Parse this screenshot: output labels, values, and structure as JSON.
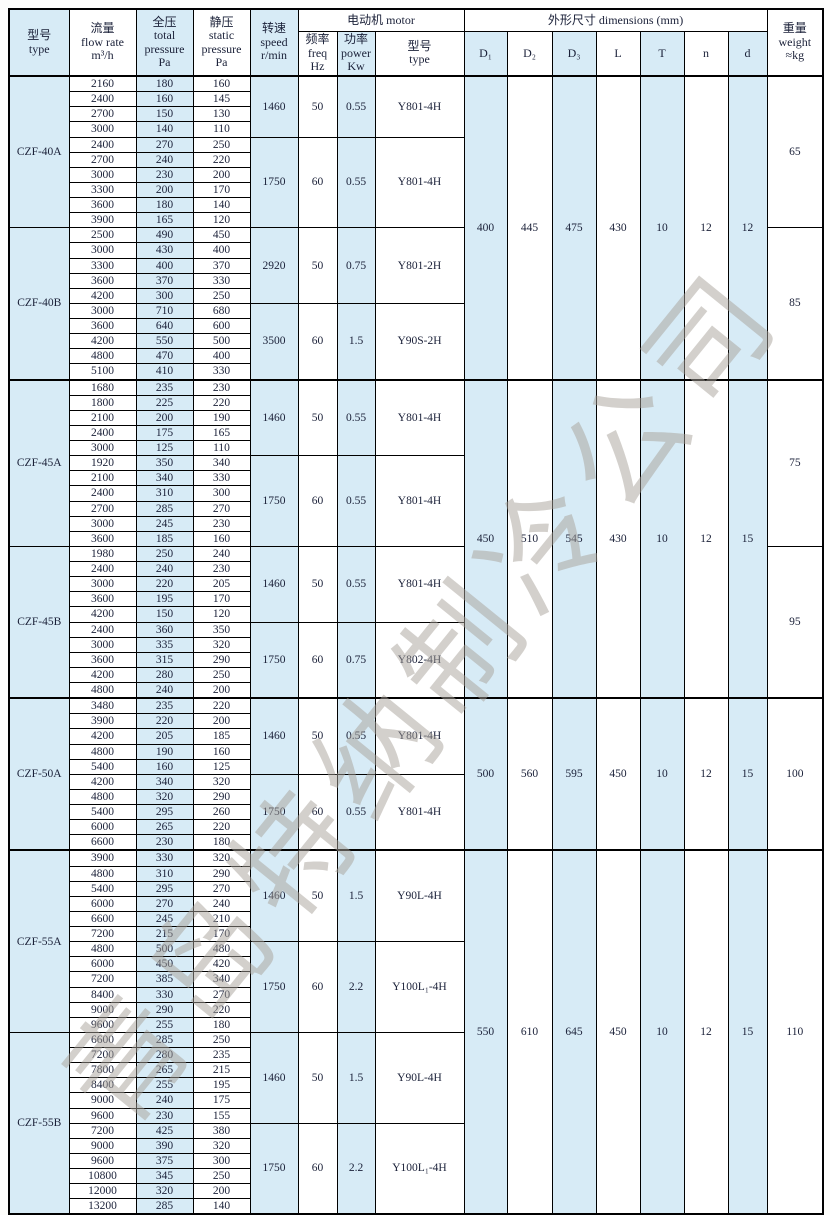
{
  "colors": {
    "stripe": "#d7ebf6",
    "border": "#000000",
    "text": "#1a2038",
    "watermark": "#a8a29a"
  },
  "watermark_text": "青岛特纳制冷公司",
  "header": {
    "type": [
      "型号",
      "type"
    ],
    "flow": [
      "流量",
      "flow rate",
      "m³/h"
    ],
    "total": [
      "全压",
      "total",
      "pressure",
      "Pa"
    ],
    "static": [
      "静压",
      "static",
      "pressure",
      "Pa"
    ],
    "speed": [
      "转速",
      "speed",
      "r/min"
    ],
    "motor_group": "电动机  motor",
    "freq": [
      "频率",
      "freq",
      "Hz"
    ],
    "power": [
      "功率",
      "power",
      "Kw"
    ],
    "motor_type": [
      "型号",
      "type"
    ],
    "dims_group": "外形尺寸   dimensions (mm)",
    "d1": "D₁",
    "d2": "D₂",
    "d3": "D₃",
    "L": "L",
    "T": "T",
    "n": "n",
    "d": "d",
    "weight": [
      "重量",
      "weight",
      "≈kg"
    ]
  },
  "models": [
    {
      "name": "CZF-40A",
      "blocks": [
        {
          "speed": "1460",
          "freq": "50",
          "power": "0.55",
          "motor": "Y801-4H",
          "rows": [
            [
              2160,
              180,
              160
            ],
            [
              2400,
              160,
              145
            ],
            [
              2700,
              150,
              130
            ],
            [
              3000,
              140,
              110
            ]
          ]
        },
        {
          "speed": "1750",
          "freq": "60",
          "power": "0.55",
          "motor": "Y801-4H",
          "rows": [
            [
              2400,
              270,
              250
            ],
            [
              2700,
              240,
              220
            ],
            [
              3000,
              230,
              200
            ],
            [
              3300,
              200,
              170
            ],
            [
              3600,
              180,
              140
            ],
            [
              3900,
              165,
              120
            ]
          ]
        }
      ]
    },
    {
      "name": "CZF-40B",
      "blocks": [
        {
          "speed": "2920",
          "freq": "50",
          "power": "0.75",
          "motor": "Y801-2H",
          "rows": [
            [
              2500,
              490,
              450
            ],
            [
              3000,
              430,
              400
            ],
            [
              3300,
              400,
              370
            ],
            [
              3600,
              370,
              330
            ],
            [
              4200,
              300,
              250
            ]
          ]
        },
        {
          "speed": "3500",
          "freq": "60",
          "power": "1.5",
          "motor": "Y90S-2H",
          "rows": [
            [
              3000,
              710,
              680
            ],
            [
              3600,
              640,
              600
            ],
            [
              4200,
              550,
              500
            ],
            [
              4800,
              470,
              400
            ],
            [
              5100,
              410,
              330
            ]
          ]
        }
      ]
    },
    {
      "name": "CZF-45A",
      "blocks": [
        {
          "speed": "1460",
          "freq": "50",
          "power": "0.55",
          "motor": "Y801-4H",
          "rows": [
            [
              1680,
              235,
              230
            ],
            [
              1800,
              225,
              220
            ],
            [
              2100,
              200,
              190
            ],
            [
              2400,
              175,
              165
            ],
            [
              3000,
              125,
              110
            ]
          ]
        },
        {
          "speed": "1750",
          "freq": "60",
          "power": "0.55",
          "motor": "Y801-4H",
          "rows": [
            [
              1920,
              350,
              340
            ],
            [
              2100,
              340,
              330
            ],
            [
              2400,
              310,
              300
            ],
            [
              2700,
              285,
              270
            ],
            [
              3000,
              245,
              230
            ],
            [
              3600,
              185,
              160
            ]
          ]
        }
      ]
    },
    {
      "name": "CZF-45B",
      "blocks": [
        {
          "speed": "1460",
          "freq": "50",
          "power": "0.55",
          "motor": "Y801-4H",
          "rows": [
            [
              1980,
              250,
              240
            ],
            [
              2400,
              240,
              230
            ],
            [
              3000,
              220,
              205
            ],
            [
              3600,
              195,
              170
            ],
            [
              4200,
              150,
              120
            ]
          ]
        },
        {
          "speed": "1750",
          "freq": "60",
          "power": "0.75",
          "motor": "Y802-4H",
          "rows": [
            [
              2400,
              360,
              350
            ],
            [
              3000,
              335,
              320
            ],
            [
              3600,
              315,
              290
            ],
            [
              4200,
              280,
              250
            ],
            [
              4800,
              240,
              200
            ]
          ]
        }
      ]
    },
    {
      "name": "CZF-50A",
      "blocks": [
        {
          "speed": "1460",
          "freq": "50",
          "power": "0.55",
          "motor": "Y801-4H",
          "rows": [
            [
              3480,
              235,
              220
            ],
            [
              3900,
              220,
              200
            ],
            [
              4200,
              205,
              185
            ],
            [
              4800,
              190,
              160
            ],
            [
              5400,
              160,
              125
            ]
          ]
        },
        {
          "speed": "1750",
          "freq": "60",
          "power": "0.55",
          "motor": "Y801-4H",
          "rows": [
            [
              4200,
              340,
              320
            ],
            [
              4800,
              320,
              290
            ],
            [
              5400,
              295,
              260
            ],
            [
              6000,
              265,
              220
            ],
            [
              6600,
              230,
              180
            ]
          ]
        }
      ]
    },
    {
      "name": "CZF-55A",
      "blocks": [
        {
          "speed": "1460",
          "freq": "50",
          "power": "1.5",
          "motor": "Y90L-4H",
          "rows": [
            [
              3900,
              330,
              320
            ],
            [
              4800,
              310,
              290
            ],
            [
              5400,
              295,
              270
            ],
            [
              6000,
              270,
              240
            ],
            [
              6600,
              245,
              210
            ],
            [
              7200,
              215,
              170
            ]
          ]
        },
        {
          "speed": "1750",
          "freq": "60",
          "power": "2.2",
          "motor": "Y100L₁-4H",
          "rows": [
            [
              4800,
              500,
              480
            ],
            [
              6000,
              450,
              420
            ],
            [
              7200,
              385,
              340
            ],
            [
              8400,
              330,
              270
            ],
            [
              9000,
              290,
              220
            ],
            [
              9600,
              255,
              180
            ]
          ]
        }
      ]
    },
    {
      "name": "CZF-55B",
      "blocks": [
        {
          "speed": "1460",
          "freq": "50",
          "power": "1.5",
          "motor": "Y90L-4H",
          "rows": [
            [
              6600,
              285,
              250
            ],
            [
              7200,
              280,
              235
            ],
            [
              7800,
              265,
              215
            ],
            [
              8400,
              255,
              195
            ],
            [
              9000,
              240,
              175
            ],
            [
              9600,
              230,
              155
            ]
          ]
        },
        {
          "speed": "1750",
          "freq": "60",
          "power": "2.2",
          "motor": "Y100L₁-4H",
          "rows": [
            [
              7200,
              425,
              380
            ],
            [
              9000,
              390,
              320
            ],
            [
              9600,
              375,
              300
            ],
            [
              10800,
              345,
              250
            ],
            [
              12000,
              320,
              200
            ],
            [
              13200,
              285,
              140
            ]
          ]
        }
      ]
    }
  ],
  "dim_groups": [
    {
      "model_indexes": [
        0,
        1
      ],
      "values": [
        "400",
        "445",
        "475",
        "430",
        "10",
        "12",
        "12"
      ]
    },
    {
      "model_indexes": [
        2,
        3
      ],
      "values": [
        "450",
        "510",
        "545",
        "430",
        "10",
        "12",
        "15"
      ]
    },
    {
      "model_indexes": [
        4
      ],
      "values": [
        "500",
        "560",
        "595",
        "450",
        "10",
        "12",
        "15"
      ]
    },
    {
      "model_indexes": [
        5,
        6
      ],
      "values": [
        "550",
        "610",
        "645",
        "450",
        "10",
        "12",
        "15"
      ]
    }
  ],
  "weight_groups": [
    {
      "model_indexes": [
        0
      ],
      "value": "65"
    },
    {
      "model_indexes": [
        1
      ],
      "value": "85"
    },
    {
      "model_indexes": [
        2
      ],
      "value": "75"
    },
    {
      "model_indexes": [
        3
      ],
      "value": "95"
    },
    {
      "model_indexes": [
        4
      ],
      "value": "100"
    },
    {
      "model_indexes": [
        5,
        6
      ],
      "value": "110"
    }
  ]
}
